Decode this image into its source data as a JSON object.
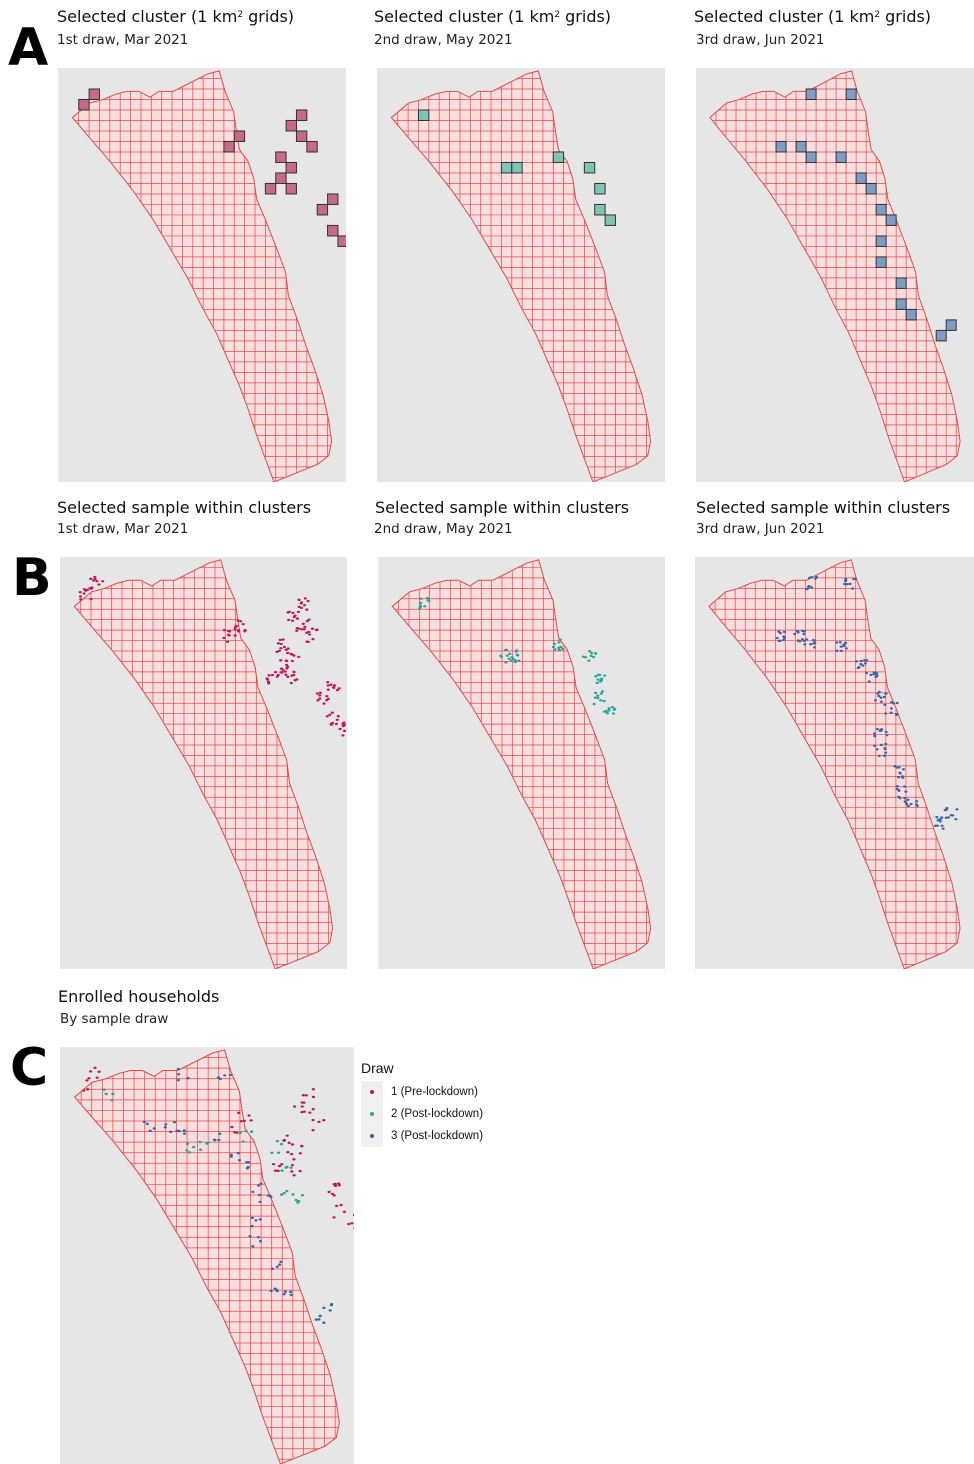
{
  "colors": {
    "draw1": "#c2185b",
    "draw2": "#26a69a",
    "draw3": "#3a66a8",
    "cluster1": "#c76a86",
    "cluster2": "#7fc4b6",
    "cluster3": "#7f9cc4",
    "grid": "#e04b4b",
    "region_fill": "#f8dede",
    "panel_bg": "#e6e6e6"
  },
  "labels": {
    "a": "A",
    "b": "B",
    "c": "C"
  },
  "row_a": {
    "title_pre": "Selected cluster (1 km",
    "title_sup": "2",
    "title_post": " grids)",
    "panels": [
      {
        "subtitle": "1st draw, Mar 2021"
      },
      {
        "subtitle": "2nd draw, May 2021"
      },
      {
        "subtitle": "3rd draw, Jun 2021"
      }
    ]
  },
  "row_b": {
    "title": "Selected sample within clusters",
    "panels": [
      {
        "subtitle": "1st draw, Mar 2021"
      },
      {
        "subtitle": "2nd draw, May 2021"
      },
      {
        "subtitle": "3rd draw, Jun 2021"
      }
    ]
  },
  "row_c": {
    "title": "Enrolled households",
    "subtitle": "By sample draw"
  },
  "legend": {
    "title": "Draw",
    "items": [
      {
        "label": "1 (Pre-lockdown)",
        "color": "#c2185b"
      },
      {
        "label": "2 (Post-lockdown)",
        "color": "#26a69a"
      },
      {
        "label": "3 (Post-lockdown)",
        "color": "#3a66a8"
      }
    ]
  }
}
